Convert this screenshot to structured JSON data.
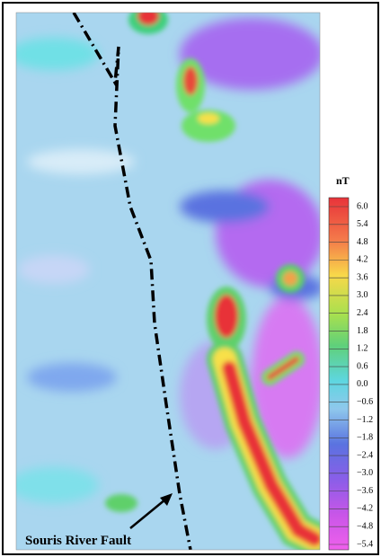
{
  "map": {
    "annotation": "Souris River Fault",
    "colorbar": {
      "unit": "nT",
      "ticks": [
        {
          "value": 6.0,
          "label": "6.0"
        },
        {
          "value": 5.4,
          "label": "5.4"
        },
        {
          "value": 4.8,
          "label": "4.8"
        },
        {
          "value": 4.2,
          "label": "4.2"
        },
        {
          "value": 3.6,
          "label": "3.6"
        },
        {
          "value": 3.0,
          "label": "3.0"
        },
        {
          "value": 2.4,
          "label": "2.4"
        },
        {
          "value": 1.8,
          "label": "1.8"
        },
        {
          "value": 1.2,
          "label": "1.2"
        },
        {
          "value": 0.6,
          "label": "0.6"
        },
        {
          "value": 0.0,
          "label": "0.0"
        },
        {
          "value": -0.6,
          "label": "−0.6"
        },
        {
          "value": -1.2,
          "label": "−1.2"
        },
        {
          "value": -1.8,
          "label": "−1.8"
        },
        {
          "value": -2.4,
          "label": "−2.4"
        },
        {
          "value": -3.0,
          "label": "−3.0"
        },
        {
          "value": -3.6,
          "label": "−3.6"
        },
        {
          "value": -4.2,
          "label": "−4.2"
        },
        {
          "value": -4.8,
          "label": "−4.8"
        },
        {
          "value": -5.4,
          "label": "−5.4"
        }
      ]
    }
  }
}
